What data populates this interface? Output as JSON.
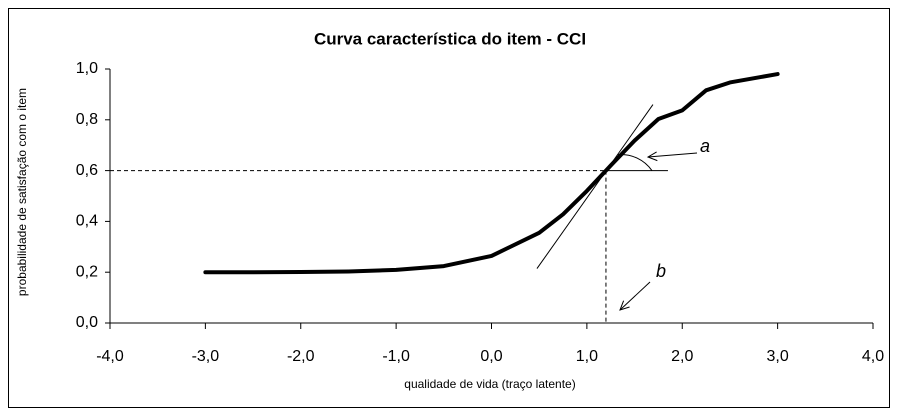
{
  "chart_data": {
    "type": "line",
    "title": "Curva característica do item - CCI",
    "xlabel": "qualidade de vida (traço latente)",
    "ylabel": "probabilidade de satisfação com o item",
    "x": [
      -3,
      -2.5,
      -2,
      -1.5,
      -1,
      -0.5,
      0,
      0.5,
      0.75,
      1,
      1.2,
      1.25,
      1.5,
      1.75,
      2,
      2.25,
      2.5,
      3
    ],
    "series": [
      {
        "name": "CCI",
        "color": "#000000",
        "values": [
          0.2,
          0.2,
          0.201,
          0.203,
          0.209,
          0.224,
          0.264,
          0.355,
          0.428,
          0.52,
          0.6,
          0.62,
          0.718,
          0.803,
          0.837,
          0.916,
          0.947,
          0.98
        ]
      }
    ],
    "xlim": [
      -4,
      4
    ],
    "xticks": [
      {
        "value": -4,
        "label": "-4,0"
      },
      {
        "value": -3,
        "label": "-3,0"
      },
      {
        "value": -2,
        "label": "-2,0"
      },
      {
        "value": -1,
        "label": "-1,0"
      },
      {
        "value": 0,
        "label": "0,0"
      },
      {
        "value": 1,
        "label": "1,0"
      },
      {
        "value": 2,
        "label": "2,0"
      },
      {
        "value": 3,
        "label": "3,0"
      },
      {
        "value": 4,
        "label": "4,0"
      }
    ],
    "ylim": [
      0,
      1
    ],
    "yticks": [
      {
        "value": 0,
        "label": "0,0"
      },
      {
        "value": 0.2,
        "label": "0,2"
      },
      {
        "value": 0.4,
        "label": "0,4"
      },
      {
        "value": 0.6,
        "label": "0,6"
      },
      {
        "value": 0.8,
        "label": "0,8"
      },
      {
        "value": 1,
        "label": "1,0"
      }
    ],
    "annotations": [
      {
        "text": "a",
        "color": "#ff0000"
      },
      {
        "text": "b",
        "color": "#ff0000"
      }
    ],
    "grid": false
  }
}
